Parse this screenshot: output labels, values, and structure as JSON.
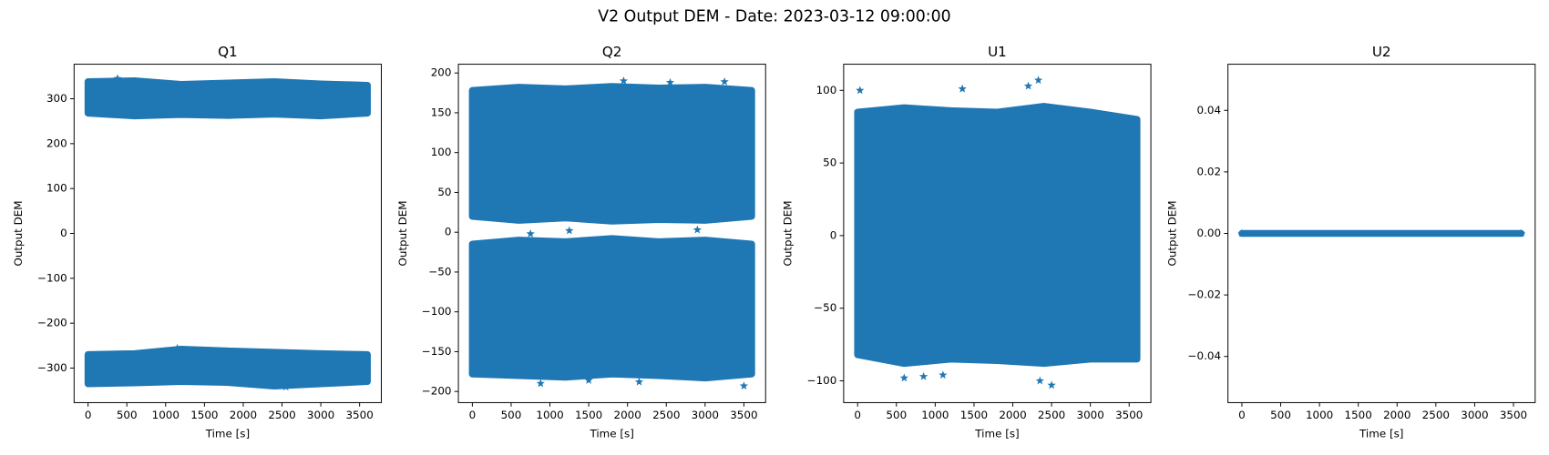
{
  "title": "V2 Output DEM - Date: 2023-03-12 09:00:00",
  "chart_data": [
    {
      "type": "scatter",
      "title": "Q1",
      "xlabel": "Time [s]",
      "ylabel": "Output DEM",
      "color": "#1f77b4",
      "marker": "*",
      "xlim": [
        -180,
        3780
      ],
      "ylim": [
        -377,
        377
      ],
      "xticks": [
        0,
        500,
        1000,
        1500,
        2000,
        2500,
        3000,
        3500
      ],
      "yticks": [
        {
          "value": -300,
          "label": "−300"
        },
        {
          "value": -200,
          "label": "−200"
        },
        {
          "value": -100,
          "label": "−100"
        },
        0,
        100,
        200,
        300
      ],
      "bands": [
        {
          "x": [
            0,
            600,
            1200,
            1800,
            2400,
            3000,
            3600
          ],
          "high": [
            338,
            340,
            332,
            335,
            338,
            333,
            330
          ],
          "low": [
            268,
            262,
            265,
            263,
            266,
            262,
            268
          ]
        },
        {
          "x": [
            0,
            600,
            1200,
            1800,
            2400,
            3000,
            3600
          ],
          "high": [
            -270,
            -268,
            -258,
            -262,
            -265,
            -268,
            -270
          ],
          "low": [
            -335,
            -333,
            -330,
            -332,
            -340,
            -335,
            -330
          ]
        }
      ],
      "points": {
        "x": [
          1150,
          380,
          2550
        ],
        "y": [
          -256,
          345,
          -342
        ]
      }
    },
    {
      "type": "scatter",
      "title": "Q2",
      "xlabel": "Time [s]",
      "ylabel": "Output DEM",
      "color": "#1f77b4",
      "marker": "*",
      "xlim": [
        -180,
        3780
      ],
      "ylim": [
        -214,
        211
      ],
      "xticks": [
        0,
        500,
        1000,
        1500,
        2000,
        2500,
        3000,
        3500
      ],
      "yticks": [
        {
          "value": -200,
          "label": "−200"
        },
        {
          "value": -150,
          "label": "−150"
        },
        {
          "value": -100,
          "label": "−100"
        },
        {
          "value": -50,
          "label": "−50"
        },
        0,
        50,
        100,
        150,
        200
      ],
      "bands": [
        {
          "x": [
            0,
            600,
            1200,
            1800,
            2400,
            3000,
            3600
          ],
          "high": [
            178,
            182,
            180,
            183,
            181,
            182,
            178
          ],
          "low": [
            20,
            15,
            18,
            14,
            16,
            15,
            20
          ]
        },
        {
          "x": [
            0,
            600,
            1200,
            1800,
            2400,
            3000,
            3600
          ],
          "high": [
            -15,
            -10,
            -12,
            -8,
            -12,
            -10,
            -15
          ],
          "low": [
            -178,
            -180,
            -182,
            -178,
            -180,
            -183,
            -178
          ]
        }
      ],
      "points": {
        "x": [
          1950,
          2550,
          3250,
          880,
          1500,
          2150,
          3500,
          1250,
          750,
          2900
        ],
        "y": [
          190,
          188,
          189,
          -190,
          -186,
          -188,
          -193,
          2,
          -2,
          3
        ]
      }
    },
    {
      "type": "scatter",
      "title": "U1",
      "xlabel": "Time [s]",
      "ylabel": "Output DEM",
      "color": "#1f77b4",
      "marker": "*",
      "xlim": [
        -180,
        3780
      ],
      "ylim": [
        -115,
        118
      ],
      "xticks": [
        0,
        500,
        1000,
        1500,
        2000,
        2500,
        3000,
        3500
      ],
      "yticks": [
        {
          "value": -100,
          "label": "−100"
        },
        {
          "value": -50,
          "label": "−50"
        },
        0,
        50,
        100
      ],
      "bands": [
        {
          "x": [
            0,
            600,
            1200,
            1800,
            2400,
            3000,
            3600
          ],
          "high": [
            85,
            88,
            86,
            85,
            89,
            85,
            80
          ],
          "low": [
            -82,
            -88,
            -85,
            -86,
            -88,
            -85,
            -85
          ]
        }
      ],
      "points": {
        "x": [
          30,
          2330,
          2200,
          1350,
          600,
          850,
          2500,
          2350,
          1100
        ],
        "y": [
          100,
          107,
          103,
          101,
          -98,
          -97,
          -103,
          -100,
          -96
        ]
      }
    },
    {
      "type": "scatter",
      "title": "U2",
      "xlabel": "Time [s]",
      "ylabel": "Output DEM",
      "color": "#1f77b4",
      "marker": "*",
      "xlim": [
        -180,
        3780
      ],
      "ylim": [
        -0.055,
        0.055
      ],
      "xticks": [
        0,
        500,
        1000,
        1500,
        2000,
        2500,
        3000,
        3500
      ],
      "yticks": [
        {
          "value": -0.04,
          "label": "−0.04"
        },
        {
          "value": -0.02,
          "label": "−0.02"
        },
        {
          "value": 0,
          "label": "0.00"
        },
        {
          "value": 0.02,
          "label": "0.02"
        },
        {
          "value": 0.04,
          "label": "0.04"
        }
      ],
      "bands": [
        {
          "x": [
            0,
            1200,
            2400,
            3600
          ],
          "high": [
            0,
            0,
            0,
            0
          ],
          "low": [
            0,
            0,
            0,
            0
          ]
        }
      ],
      "points": {
        "x": [
          0,
          3600
        ],
        "y": [
          0,
          0
        ]
      }
    }
  ]
}
